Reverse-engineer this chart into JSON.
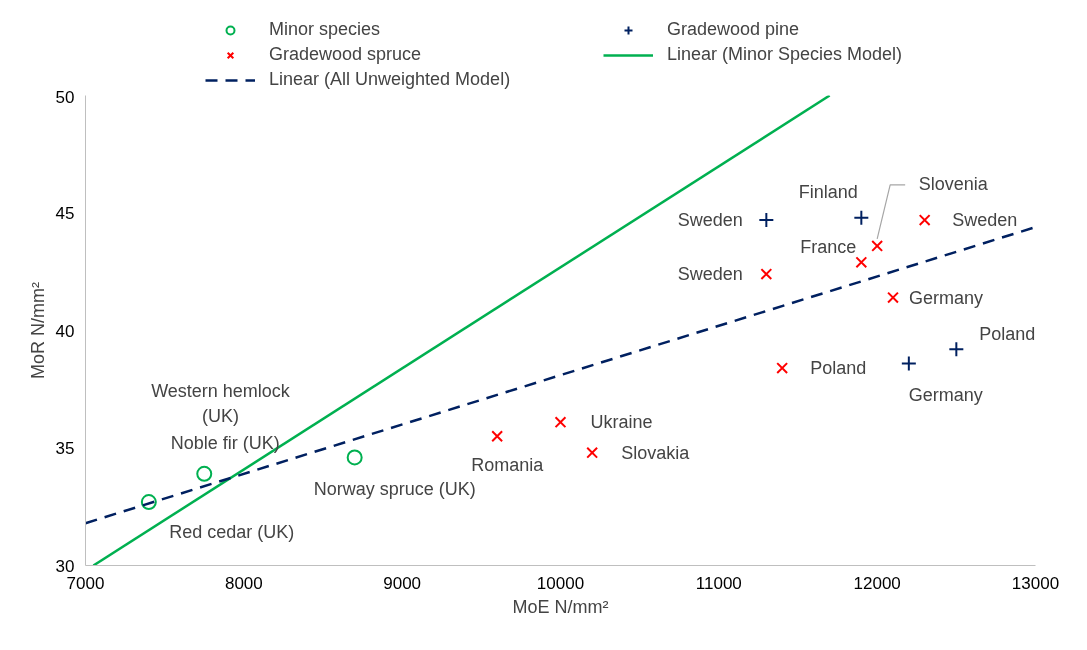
{
  "chart_data": {
    "type": "scatter",
    "xlabel": "MoE N/mm²",
    "ylabel": "MoR N/mm²",
    "xlim": [
      7000,
      13000
    ],
    "xticks": [
      7000,
      8000,
      9000,
      10000,
      11000,
      12000,
      13000
    ],
    "ylim": [
      30,
      50
    ],
    "yticks": [
      30,
      35,
      40,
      45,
      50
    ],
    "grid": false,
    "legend": "top",
    "series": [
      {
        "name": "Minor species",
        "color": "#00b050",
        "marker": "circle",
        "x": [
          7400,
          7750,
          8700
        ],
        "values": [
          32.7,
          33.9,
          34.6
        ]
      },
      {
        "name": "Gradewood pine",
        "color": "#002060",
        "marker": "cross",
        "x": [
          11300,
          11900,
          12200,
          12500
        ],
        "values": [
          44.7,
          44.8,
          38.6,
          39.2
        ]
      },
      {
        "name": "Gradewood spruce",
        "color": "#ff0000",
        "marker": "x",
        "x": [
          11300,
          11900,
          12000,
          12300,
          12100,
          11400,
          10000,
          10200,
          9600
        ],
        "values": [
          42.4,
          42.9,
          43.6,
          44.7,
          41.4,
          38.4,
          36.1,
          34.8,
          35.5
        ]
      },
      {
        "name": "Linear (Minor Species Model)",
        "type": "line",
        "color": "#00b050",
        "line_style": "solid",
        "x": [
          7050,
          11700
        ],
        "values": [
          30,
          50
        ]
      },
      {
        "name": "Linear (All Unweighted Model)",
        "type": "line",
        "color": "#002060",
        "line_style": "dashed",
        "x": [
          7000,
          13000
        ],
        "values": [
          31.8,
          44.4
        ]
      }
    ],
    "annotations": [
      {
        "text": "Red cedar (UK)",
        "x": 7400,
        "y": 32.7
      },
      {
        "text": "Noble fir (UK)",
        "x": 7750,
        "y": 33.9
      },
      "Western hemlock\n(UK)",
      {
        "text": "Norway spruce (UK)",
        "x": 8700,
        "y": 34.6
      },
      {
        "text": "Romania",
        "x": 9600,
        "y": 35.5
      },
      {
        "text": "Ukraine",
        "x": 10000,
        "y": 36.1
      },
      {
        "text": "Slovakia",
        "x": 10200,
        "y": 34.8
      },
      {
        "text": "Poland",
        "x": 11400,
        "y": 38.4
      },
      {
        "text": "Sweden",
        "x": 11300,
        "y": 42.4
      },
      {
        "text": "Sweden",
        "x": 11300,
        "y": 44.7
      },
      {
        "text": "Finland",
        "x": 11900,
        "y": 44.8
      },
      {
        "text": "France",
        "x": 11900,
        "y": 42.9
      },
      {
        "text": "Slovenia",
        "x": 12000,
        "y": 43.6
      },
      {
        "text": "Sweden",
        "x": 12300,
        "y": 44.7
      },
      {
        "text": "Germany",
        "x": 12100,
        "y": 41.4
      },
      {
        "text": "Germany",
        "x": 12200,
        "y": 38.6
      },
      {
        "text": "Poland",
        "x": 12500,
        "y": 39.2
      }
    ]
  }
}
